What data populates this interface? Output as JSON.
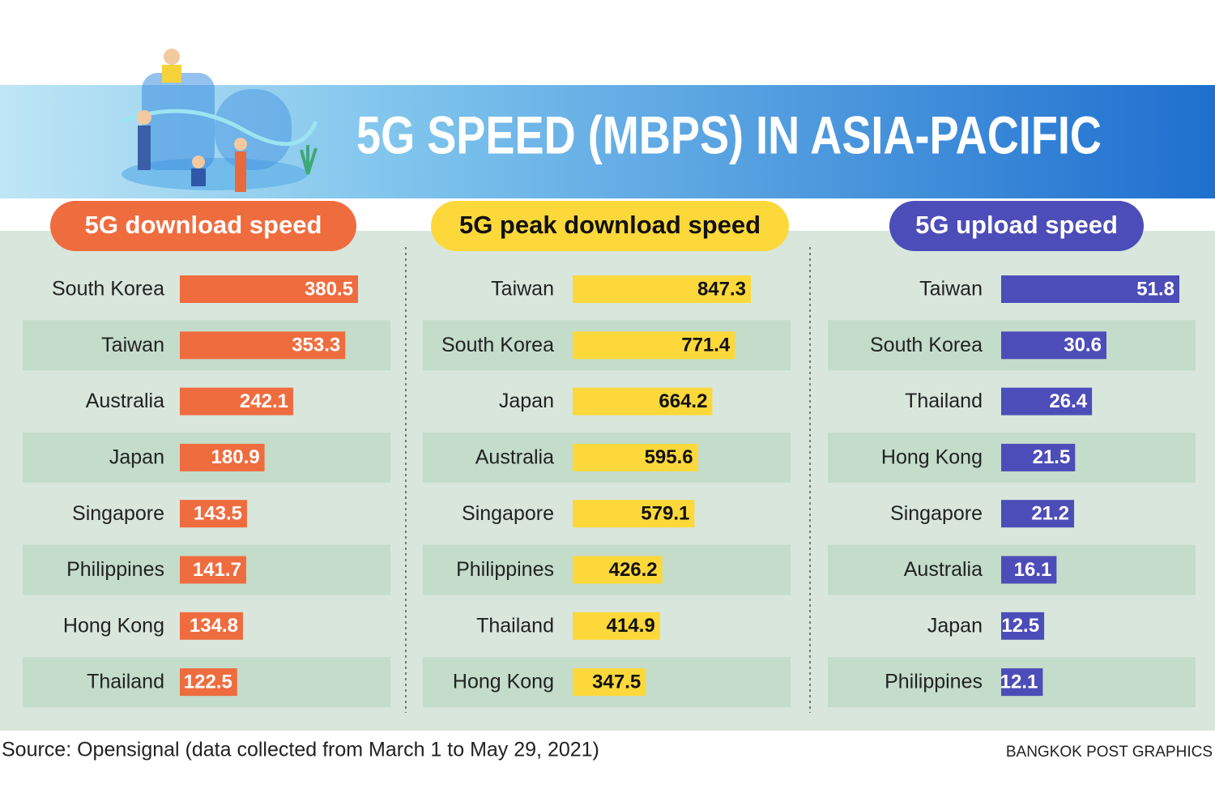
{
  "title": "5G SPEED (MBPS) IN ASIA-PACIFIC",
  "source": "Source: Opensignal (data collected from March 1 to May 29, 2021)",
  "credit": "BANGKOK POST GRAPHICS",
  "chart_data": [
    {
      "type": "bar",
      "orientation": "horizontal",
      "title": "5G download speed",
      "categories": [
        "South Korea",
        "Taiwan",
        "Australia",
        "Japan",
        "Singapore",
        "Philippines",
        "Hong Kong",
        "Thailand"
      ],
      "values": [
        380.5,
        353.3,
        242.1,
        180.9,
        143.5,
        141.7,
        134.8,
        122.5
      ],
      "color": "#ef6c3f",
      "label_color": "#ffffff"
    },
    {
      "type": "bar",
      "orientation": "horizontal",
      "title": "5G peak download speed",
      "categories": [
        "Taiwan",
        "South Korea",
        "Japan",
        "Australia",
        "Singapore",
        "Philippines",
        "Thailand",
        "Hong Kong"
      ],
      "values": [
        847.3,
        771.4,
        664.2,
        595.6,
        579.1,
        426.2,
        414.9,
        347.5
      ],
      "color": "#fdd83a",
      "label_color": "#111111"
    },
    {
      "type": "bar",
      "orientation": "horizontal",
      "title": "5G upload speed",
      "categories": [
        "Taiwan",
        "South Korea",
        "Thailand",
        "Hong Kong",
        "Singapore",
        "Australia",
        "Japan",
        "Philippines"
      ],
      "values": [
        51.8,
        30.6,
        26.4,
        21.5,
        21.2,
        16.1,
        12.5,
        12.1
      ],
      "color": "#4c4db8",
      "label_color": "#ffffff"
    }
  ]
}
